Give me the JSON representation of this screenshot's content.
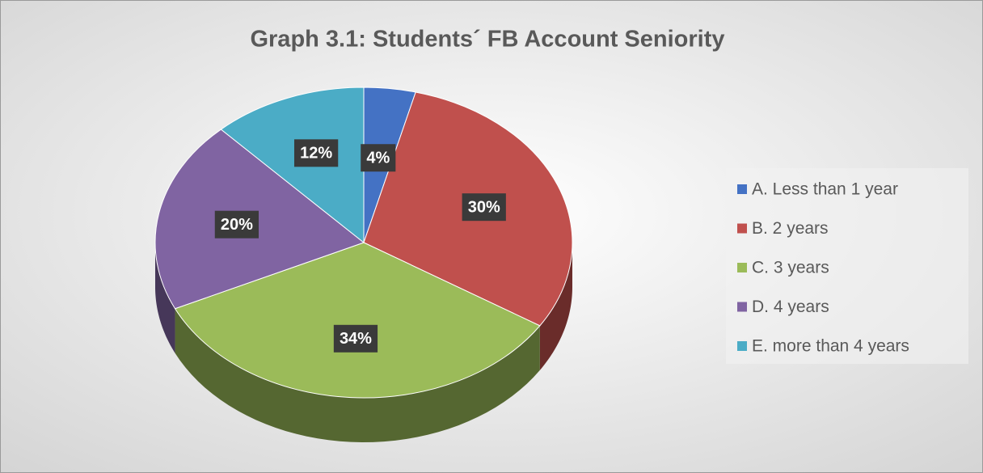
{
  "chart_data": {
    "type": "pie",
    "title": "Graph 3.1: Students´ FB Account Seniority",
    "categories": [
      "A. Less than  1 year",
      "B. 2 years",
      "C. 3 years",
      "D. 4 years",
      "E. more than 4 years"
    ],
    "values": [
      4,
      30,
      34,
      20,
      12
    ],
    "value_labels": [
      "4%",
      "30%",
      "34%",
      "20%",
      "12%"
    ],
    "colors": [
      "#4472c4",
      "#c0504d",
      "#9bbb59",
      "#8064a2",
      "#4bacc6"
    ],
    "legend": "right"
  }
}
